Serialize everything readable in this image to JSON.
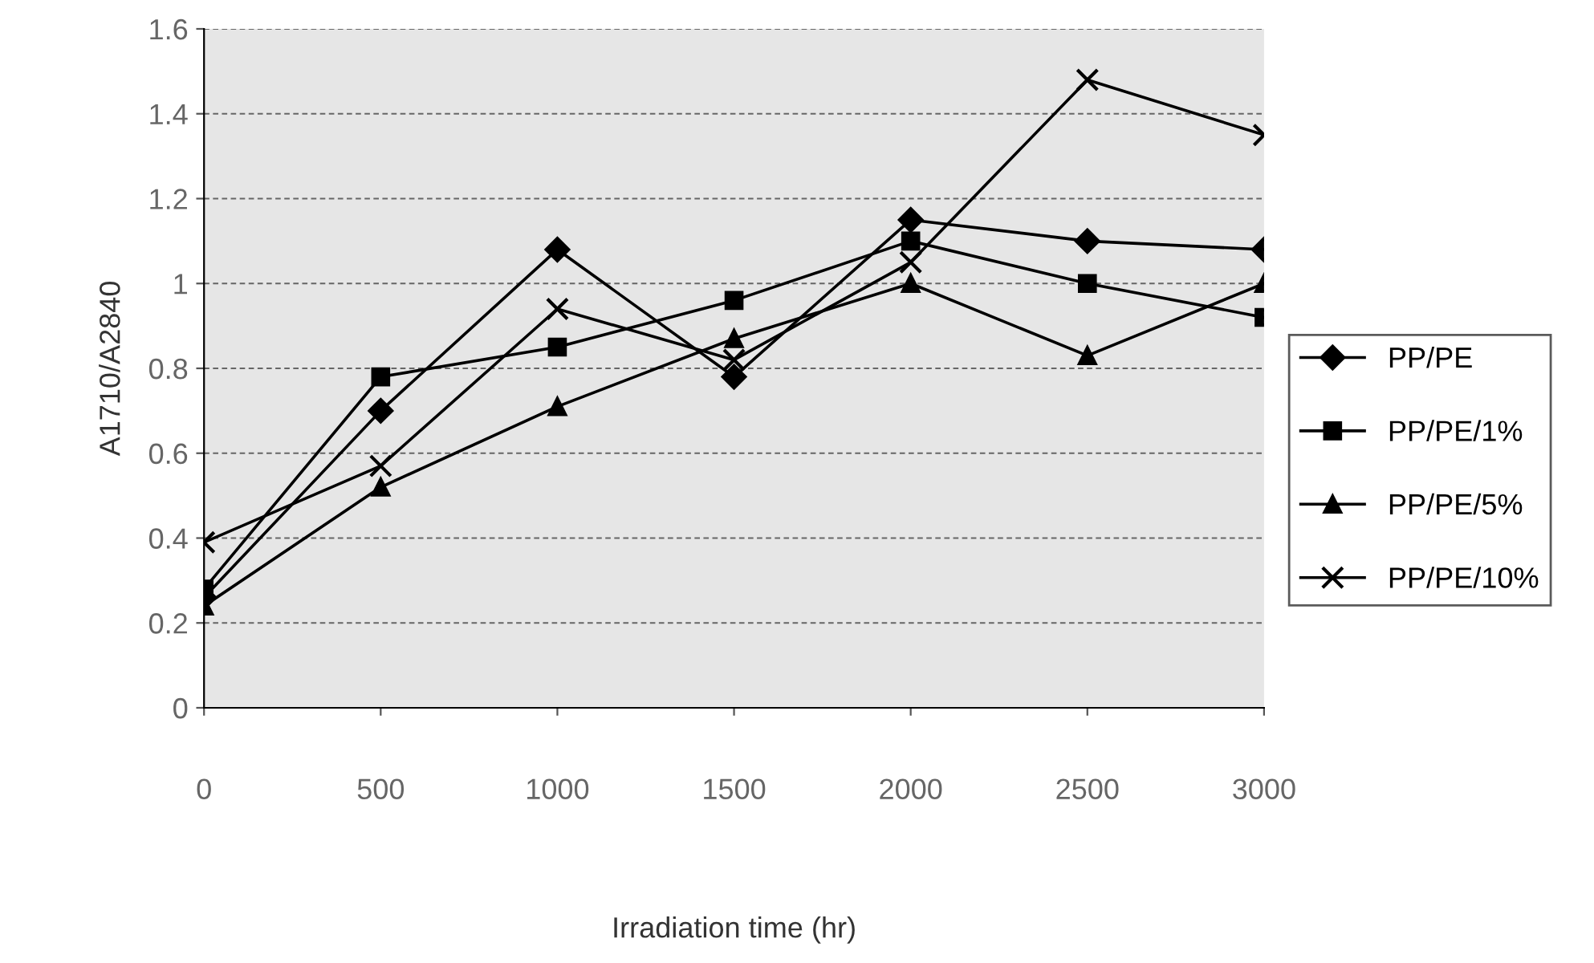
{
  "chart_data": {
    "type": "line",
    "xlabel": "Irradiation time (hr)",
    "ylabel": "A1710/A2840",
    "x": [
      0,
      500,
      1000,
      1500,
      2000,
      2500,
      3000
    ],
    "series": [
      {
        "name": "PP/PE",
        "color": "#000000",
        "marker": "diamond",
        "values": [
          0.26,
          0.7,
          1.08,
          0.78,
          1.15,
          1.1,
          1.08
        ]
      },
      {
        "name": "PP/PE/1%",
        "color": "#000000",
        "marker": "square",
        "values": [
          0.28,
          0.78,
          0.85,
          0.96,
          1.1,
          1.0,
          0.92
        ]
      },
      {
        "name": "PP/PE/5%",
        "color": "#000000",
        "marker": "triangle",
        "values": [
          0.24,
          0.52,
          0.71,
          0.87,
          1.0,
          0.83,
          1.0
        ]
      },
      {
        "name": "PP/PE/10%",
        "color": "#000000",
        "marker": "cross",
        "values": [
          0.39,
          0.57,
          0.94,
          0.82,
          1.05,
          1.48,
          1.35
        ]
      }
    ],
    "xlim": [
      0,
      3000
    ],
    "xticks": [
      0,
      500,
      1000,
      1500,
      2000,
      2500,
      3000
    ],
    "ylim": [
      0,
      1.6
    ],
    "yticks": [
      0,
      0.2,
      0.4,
      0.6,
      0.8,
      1,
      1.2,
      1.4,
      1.6
    ],
    "grid": "y",
    "legend": "right",
    "line_style": "solid"
  }
}
